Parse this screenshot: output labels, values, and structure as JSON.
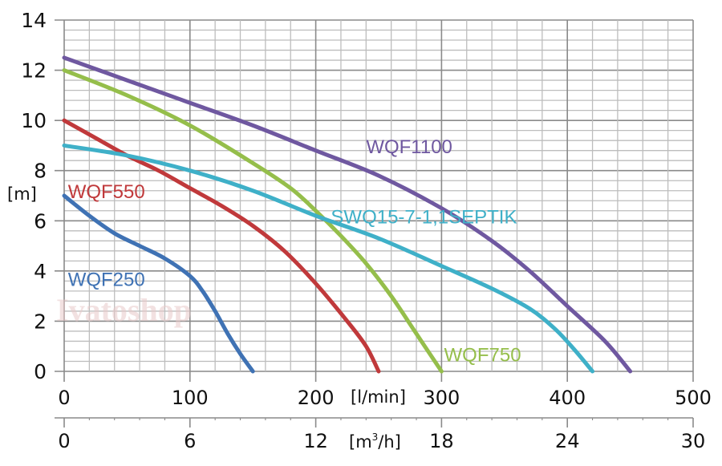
{
  "chart_data": {
    "type": "line",
    "title": "",
    "watermark": "Ivatoshop",
    "ylabel": "[m]",
    "xlabel": "[l/min]",
    "xlabel_secondary": "[m³/h]",
    "xlabel_secondary_base": "[m",
    "xlabel_secondary_sup": "3",
    "xlabel_secondary_tail": "/h]",
    "xlim": [
      0,
      500
    ],
    "ylim": [
      0,
      14
    ],
    "x_ticks": [
      0,
      100,
      200,
      300,
      400,
      500
    ],
    "x_tick_labels": [
      "0",
      "100",
      "200",
      "300",
      "400",
      "500"
    ],
    "x_secondary_ticks": [
      0,
      100,
      200,
      300,
      400,
      500
    ],
    "x_secondary_tick_labels": [
      "0",
      "6",
      "12",
      "18",
      "24",
      "30"
    ],
    "y_ticks": [
      0,
      2,
      4,
      6,
      8,
      10,
      12,
      14
    ],
    "y_tick_labels": [
      "0",
      "2",
      "4",
      "6",
      "8",
      "10",
      "12",
      "14"
    ],
    "grid": true,
    "grid_minor_x_step": 20,
    "grid_minor_y_step": 0.4,
    "legend": "inline-labels",
    "series": [
      {
        "name": "WQF250",
        "color": "#3f72b4",
        "points": [
          [
            0,
            7.0
          ],
          [
            20,
            6.2
          ],
          [
            40,
            5.5
          ],
          [
            60,
            5.0
          ],
          [
            80,
            4.5
          ],
          [
            100,
            3.8
          ],
          [
            110,
            3.2
          ],
          [
            120,
            2.4
          ],
          [
            130,
            1.5
          ],
          [
            140,
            0.7
          ],
          [
            150,
            0.0
          ]
        ]
      },
      {
        "name": "WQF550",
        "color": "#c0393b",
        "points": [
          [
            0,
            10.0
          ],
          [
            25,
            9.3
          ],
          [
            50,
            8.6
          ],
          [
            75,
            8.0
          ],
          [
            100,
            7.3
          ],
          [
            125,
            6.6
          ],
          [
            150,
            5.8
          ],
          [
            175,
            4.8
          ],
          [
            200,
            3.5
          ],
          [
            225,
            2.0
          ],
          [
            240,
            1.0
          ],
          [
            250,
            0.0
          ]
        ]
      },
      {
        "name": "WQF750",
        "color": "#95be4b",
        "points": [
          [
            0,
            12.0
          ],
          [
            50,
            11.0
          ],
          [
            100,
            9.8
          ],
          [
            150,
            8.3
          ],
          [
            180,
            7.3
          ],
          [
            200,
            6.4
          ],
          [
            220,
            5.4
          ],
          [
            240,
            4.3
          ],
          [
            260,
            3.0
          ],
          [
            280,
            1.5
          ],
          [
            300,
            0.0
          ]
        ]
      },
      {
        "name": "WQF1100",
        "color": "#6f58a0",
        "points": [
          [
            0,
            12.5
          ],
          [
            50,
            11.6
          ],
          [
            100,
            10.7
          ],
          [
            150,
            9.8
          ],
          [
            200,
            8.8
          ],
          [
            250,
            7.8
          ],
          [
            300,
            6.5
          ],
          [
            340,
            5.2
          ],
          [
            370,
            4.0
          ],
          [
            400,
            2.6
          ],
          [
            430,
            1.2
          ],
          [
            450,
            0.0
          ]
        ]
      },
      {
        "name": "SWQ15-7-1,1SEPTIK",
        "color": "#3fb0c8",
        "points": [
          [
            0,
            9.0
          ],
          [
            50,
            8.6
          ],
          [
            100,
            8.0
          ],
          [
            150,
            7.2
          ],
          [
            200,
            6.2
          ],
          [
            250,
            5.3
          ],
          [
            300,
            4.2
          ],
          [
            340,
            3.3
          ],
          [
            370,
            2.5
          ],
          [
            390,
            1.7
          ],
          [
            405,
            0.9
          ],
          [
            420,
            0.0
          ]
        ]
      }
    ],
    "labels": [
      {
        "series": "WQF1100",
        "text": "WQF1100",
        "x": 240,
        "y": 8.7
      },
      {
        "series": "WQF550",
        "text": "WQF550",
        "x": 3,
        "y": 6.9
      },
      {
        "series": "SWQ15-7-1,1SEPTIK",
        "text": "SWQ15-7-1,1SEPTIK",
        "x": 212,
        "y": 5.9
      },
      {
        "series": "WQF250",
        "text": "WQF250",
        "x": 3,
        "y": 3.4
      },
      {
        "series": "WQF750",
        "text": "WQF750",
        "x": 302,
        "y": 0.4
      }
    ]
  }
}
